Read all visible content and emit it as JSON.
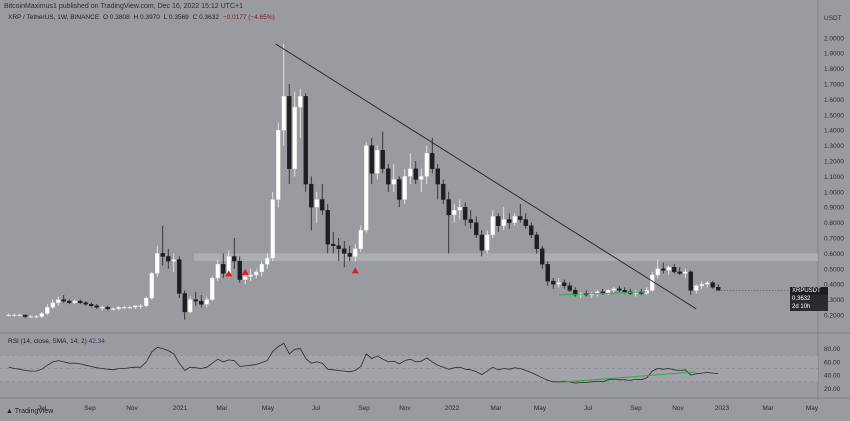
{
  "header": {
    "publisher": "BitcoinMaximus1 published on TradingView.com, Dec 16, 2022 15:12 UTC+1"
  },
  "legend": {
    "symbol": "XRP / TetherUS, 1W, BINANCE",
    "open": "O 0.3808",
    "high": "H 0.3970",
    "low": "L 0.3569",
    "close": "C 0.3632",
    "change": "−0.0177 (−4.65%)"
  },
  "price_badge": {
    "symbol": "XRPUSDT",
    "price": "0.3632",
    "countdown": "2d 10h"
  },
  "rsi_legend": {
    "label": "RSI (14, close, SMA, 14, 2)",
    "value": "42.34"
  },
  "branding": {
    "logo_text": "TradingView"
  },
  "chart_data": {
    "type": "candlestick",
    "currency": "USDT",
    "price_ticks": [
      "2.0000",
      "1.9000",
      "1.8000",
      "1.7000",
      "1.6000",
      "1.5000",
      "1.4000",
      "1.3000",
      "1.2000",
      "1.1000",
      "1.0000",
      "0.9000",
      "0.8000",
      "0.7000",
      "0.6000",
      "0.5000",
      "0.4000",
      "0.3000",
      "0.2000"
    ],
    "time_ticks": [
      "Jul",
      "Sep",
      "Nov",
      "2021",
      "Mar",
      "May",
      "Jul",
      "Sep",
      "Nov",
      "2022",
      "Mar",
      "May",
      "Jul",
      "Sep",
      "Nov",
      "2023",
      "Mar",
      "May"
    ],
    "ylim": [
      0.15,
      2.05
    ],
    "candles": [
      [
        0.2,
        0.21,
        0.19,
        0.2
      ],
      [
        0.2,
        0.21,
        0.19,
        0.2
      ],
      [
        0.2,
        0.21,
        0.19,
        0.2
      ],
      [
        0.2,
        0.2,
        0.18,
        0.19
      ],
      [
        0.19,
        0.2,
        0.18,
        0.19
      ],
      [
        0.19,
        0.2,
        0.18,
        0.19
      ],
      [
        0.19,
        0.22,
        0.18,
        0.21
      ],
      [
        0.21,
        0.27,
        0.2,
        0.25
      ],
      [
        0.25,
        0.3,
        0.24,
        0.28
      ],
      [
        0.28,
        0.32,
        0.26,
        0.3
      ],
      [
        0.3,
        0.33,
        0.28,
        0.29
      ],
      [
        0.29,
        0.3,
        0.27,
        0.28
      ],
      [
        0.28,
        0.3,
        0.27,
        0.29
      ],
      [
        0.29,
        0.3,
        0.27,
        0.28
      ],
      [
        0.28,
        0.29,
        0.26,
        0.27
      ],
      [
        0.27,
        0.28,
        0.25,
        0.26
      ],
      [
        0.26,
        0.27,
        0.24,
        0.25
      ],
      [
        0.25,
        0.26,
        0.23,
        0.25
      ],
      [
        0.25,
        0.26,
        0.23,
        0.24
      ],
      [
        0.24,
        0.25,
        0.23,
        0.24
      ],
      [
        0.24,
        0.26,
        0.23,
        0.25
      ],
      [
        0.25,
        0.26,
        0.24,
        0.25
      ],
      [
        0.25,
        0.26,
        0.24,
        0.25
      ],
      [
        0.25,
        0.26,
        0.24,
        0.26
      ],
      [
        0.26,
        0.27,
        0.24,
        0.26
      ],
      [
        0.26,
        0.32,
        0.25,
        0.31
      ],
      [
        0.31,
        0.48,
        0.3,
        0.47
      ],
      [
        0.47,
        0.65,
        0.45,
        0.6
      ],
      [
        0.6,
        0.78,
        0.52,
        0.58
      ],
      [
        0.58,
        0.63,
        0.5,
        0.55
      ],
      [
        0.55,
        0.6,
        0.48,
        0.56
      ],
      [
        0.56,
        0.58,
        0.31,
        0.34
      ],
      [
        0.34,
        0.36,
        0.17,
        0.22
      ],
      [
        0.22,
        0.32,
        0.21,
        0.3
      ],
      [
        0.3,
        0.35,
        0.26,
        0.29
      ],
      [
        0.29,
        0.33,
        0.25,
        0.27
      ],
      [
        0.27,
        0.32,
        0.25,
        0.3
      ],
      [
        0.3,
        0.45,
        0.29,
        0.44
      ],
      [
        0.44,
        0.56,
        0.42,
        0.53
      ],
      [
        0.53,
        0.6,
        0.44,
        0.47
      ],
      [
        0.47,
        0.62,
        0.45,
        0.58
      ],
      [
        0.58,
        0.7,
        0.5,
        0.55
      ],
      [
        0.55,
        0.58,
        0.41,
        0.43
      ],
      [
        0.43,
        0.48,
        0.4,
        0.45
      ],
      [
        0.45,
        0.5,
        0.42,
        0.46
      ],
      [
        0.46,
        0.5,
        0.44,
        0.48
      ],
      [
        0.48,
        0.55,
        0.45,
        0.53
      ],
      [
        0.53,
        0.6,
        0.5,
        0.57
      ],
      [
        0.57,
        1.0,
        0.55,
        0.95
      ],
      [
        0.95,
        1.45,
        0.9,
        1.4
      ],
      [
        1.4,
        1.96,
        1.3,
        1.62
      ],
      [
        1.62,
        1.7,
        1.05,
        1.15
      ],
      [
        1.15,
        1.65,
        1.1,
        1.55
      ],
      [
        1.55,
        1.67,
        1.35,
        1.62
      ],
      [
        1.62,
        1.64,
        1.0,
        1.05
      ],
      [
        1.05,
        1.1,
        0.75,
        0.9
      ],
      [
        0.9,
        1.0,
        0.8,
        0.95
      ],
      [
        0.95,
        1.05,
        0.85,
        0.88
      ],
      [
        0.88,
        0.92,
        0.6,
        0.66
      ],
      [
        0.66,
        0.74,
        0.6,
        0.65
      ],
      [
        0.65,
        0.7,
        0.55,
        0.63
      ],
      [
        0.63,
        0.68,
        0.51,
        0.6
      ],
      [
        0.6,
        0.65,
        0.55,
        0.58
      ],
      [
        0.58,
        0.66,
        0.55,
        0.63
      ],
      [
        0.63,
        0.78,
        0.61,
        0.75
      ],
      [
        0.75,
        1.32,
        0.73,
        1.3
      ],
      [
        1.3,
        1.35,
        1.05,
        1.12
      ],
      [
        1.12,
        1.3,
        1.08,
        1.27
      ],
      [
        1.27,
        1.39,
        1.12,
        1.15
      ],
      [
        1.15,
        1.18,
        1.0,
        1.05
      ],
      [
        1.05,
        1.18,
        1.0,
        1.08
      ],
      [
        1.08,
        1.1,
        0.9,
        0.95
      ],
      [
        0.95,
        1.15,
        0.92,
        1.1
      ],
      [
        1.1,
        1.25,
        1.05,
        1.15
      ],
      [
        1.15,
        1.2,
        1.05,
        1.08
      ],
      [
        1.08,
        1.15,
        1.0,
        1.1
      ],
      [
        1.1,
        1.3,
        1.05,
        1.25
      ],
      [
        1.25,
        1.35,
        1.12,
        1.15
      ],
      [
        1.15,
        1.18,
        0.95,
        1.05
      ],
      [
        1.05,
        1.08,
        0.92,
        0.95
      ],
      [
        0.95,
        1.0,
        0.6,
        0.85
      ],
      [
        0.85,
        0.92,
        0.8,
        0.88
      ],
      [
        0.88,
        0.95,
        0.82,
        0.9
      ],
      [
        0.9,
        0.93,
        0.78,
        0.82
      ],
      [
        0.82,
        0.88,
        0.76,
        0.8
      ],
      [
        0.8,
        0.84,
        0.7,
        0.72
      ],
      [
        0.72,
        0.75,
        0.58,
        0.62
      ],
      [
        0.62,
        0.75,
        0.6,
        0.72
      ],
      [
        0.72,
        0.88,
        0.7,
        0.84
      ],
      [
        0.84,
        0.86,
        0.74,
        0.78
      ],
      [
        0.78,
        0.9,
        0.75,
        0.82
      ],
      [
        0.82,
        0.86,
        0.76,
        0.8
      ],
      [
        0.8,
        0.86,
        0.78,
        0.84
      ],
      [
        0.84,
        0.92,
        0.8,
        0.82
      ],
      [
        0.82,
        0.86,
        0.76,
        0.78
      ],
      [
        0.78,
        0.8,
        0.7,
        0.72
      ],
      [
        0.72,
        0.74,
        0.6,
        0.63
      ],
      [
        0.63,
        0.65,
        0.5,
        0.53
      ],
      [
        0.53,
        0.55,
        0.39,
        0.42
      ],
      [
        0.42,
        0.44,
        0.37,
        0.4
      ],
      [
        0.4,
        0.44,
        0.38,
        0.41
      ],
      [
        0.41,
        0.43,
        0.37,
        0.39
      ],
      [
        0.39,
        0.41,
        0.35,
        0.36
      ],
      [
        0.36,
        0.38,
        0.32,
        0.33
      ],
      [
        0.33,
        0.35,
        0.31,
        0.34
      ],
      [
        0.34,
        0.36,
        0.32,
        0.33
      ],
      [
        0.33,
        0.35,
        0.31,
        0.34
      ],
      [
        0.34,
        0.36,
        0.32,
        0.35
      ],
      [
        0.35,
        0.37,
        0.33,
        0.34
      ],
      [
        0.34,
        0.37,
        0.33,
        0.36
      ],
      [
        0.36,
        0.38,
        0.34,
        0.37
      ],
      [
        0.37,
        0.39,
        0.35,
        0.36
      ],
      [
        0.36,
        0.38,
        0.34,
        0.35
      ],
      [
        0.35,
        0.37,
        0.33,
        0.34
      ],
      [
        0.34,
        0.36,
        0.32,
        0.35
      ],
      [
        0.35,
        0.37,
        0.33,
        0.34
      ],
      [
        0.34,
        0.38,
        0.33,
        0.36
      ],
      [
        0.36,
        0.48,
        0.35,
        0.46
      ],
      [
        0.46,
        0.56,
        0.44,
        0.5
      ],
      [
        0.5,
        0.54,
        0.47,
        0.49
      ],
      [
        0.49,
        0.52,
        0.46,
        0.51
      ],
      [
        0.51,
        0.53,
        0.47,
        0.48
      ],
      [
        0.48,
        0.51,
        0.46,
        0.47
      ],
      [
        0.47,
        0.5,
        0.44,
        0.48
      ],
      [
        0.48,
        0.49,
        0.33,
        0.36
      ],
      [
        0.36,
        0.4,
        0.34,
        0.39
      ],
      [
        0.39,
        0.42,
        0.37,
        0.4
      ],
      [
        0.4,
        0.42,
        0.38,
        0.41
      ],
      [
        0.41,
        0.42,
        0.37,
        0.38
      ],
      [
        0.38,
        0.4,
        0.36,
        0.36
      ]
    ],
    "resistance_line": {
      "from": {
        "index": 50,
        "price": 1.96
      },
      "to": {
        "index": 125,
        "price": 0.24
      }
    },
    "support_zone": [
      0.55,
      0.6
    ],
    "markers": [
      {
        "index": 40,
        "price": 0.47
      },
      {
        "index": 43,
        "price": 0.48
      },
      {
        "index": 63,
        "price": 0.49
      }
    ],
    "rsi": [
      52,
      50,
      49,
      47,
      46,
      46,
      49,
      55,
      60,
      62,
      60,
      58,
      58,
      57,
      55,
      53,
      51,
      50,
      49,
      48,
      50,
      50,
      51,
      52,
      52,
      60,
      75,
      82,
      80,
      77,
      72,
      58,
      47,
      52,
      51,
      50,
      52,
      58,
      64,
      60,
      63,
      62,
      53,
      54,
      55,
      56,
      59,
      62,
      76,
      83,
      88,
      72,
      79,
      80,
      65,
      58,
      60,
      58,
      49,
      48,
      47,
      46,
      45,
      47,
      53,
      72,
      65,
      69,
      64,
      60,
      61,
      57,
      62,
      64,
      60,
      61,
      66,
      60,
      55,
      52,
      49,
      51,
      52,
      49,
      48,
      45,
      41,
      46,
      52,
      48,
      50,
      49,
      51,
      50,
      47,
      44,
      40,
      36,
      32,
      30,
      30,
      31,
      30,
      28,
      29,
      29,
      30,
      31,
      30,
      33,
      34,
      33,
      33,
      32,
      34,
      33,
      36,
      46,
      50,
      49,
      50,
      48,
      47,
      48,
      40,
      42,
      43,
      44,
      43,
      42.34
    ],
    "rsi_levels": [
      "80.00",
      "60.00",
      "40.00",
      "20.00"
    ],
    "rsi_bands": [
      30,
      70
    ],
    "green_annotation": {
      "price_line": {
        "from": {
          "index": 100,
          "price": 0.33
        },
        "to": {
          "index": 116,
          "price": 0.35
        }
      },
      "rsi_line": {
        "from": {
          "index": 100,
          "rsi": 29
        },
        "to": {
          "index": 125,
          "rsi": 45
        }
      }
    },
    "colors": {
      "up": "#ffffff",
      "down": "#1e1f22",
      "marker": "#e01d1d",
      "trendline": "#1e1f22",
      "green": "#2fa846",
      "rsi": "#2a2b2e"
    }
  }
}
